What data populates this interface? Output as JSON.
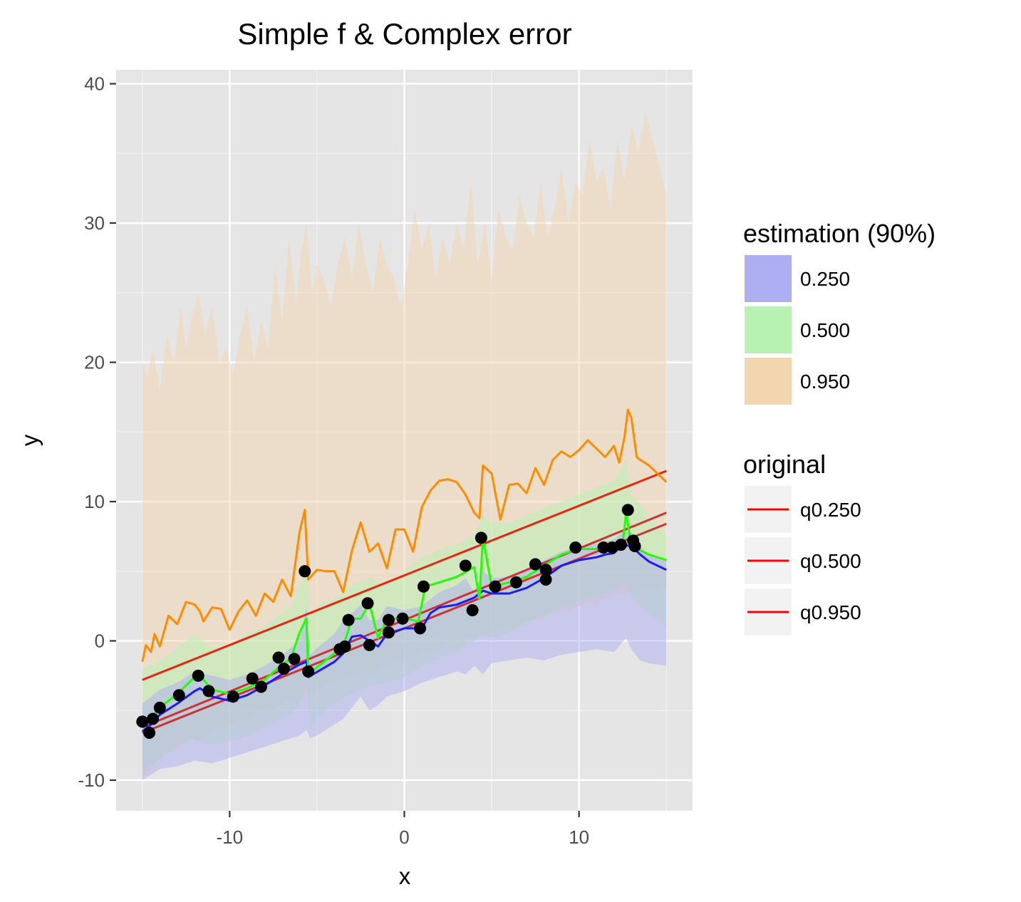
{
  "chart_data": {
    "type": "line",
    "title": "Simple f & Complex error",
    "xlabel": "x",
    "ylabel": "y",
    "xlim": [
      -16.5,
      16.5
    ],
    "ylim": [
      -12.2,
      41
    ],
    "x_ticks": [
      -10,
      0,
      10
    ],
    "x_tick_labels": [
      "-10",
      "0",
      "10"
    ],
    "y_ticks": [
      -10,
      0,
      10,
      20,
      30,
      40
    ],
    "y_tick_labels": [
      "-10",
      "0",
      "10",
      "20",
      "30",
      "40"
    ],
    "grid": true,
    "legend_position": "right",
    "colors": {
      "panel_bg": "#e5e5e5",
      "grid_major": "#ffffff",
      "band_0250": "#aeaef2",
      "band_0500": "#b8f2b2",
      "band_0950": "#f2d6b0",
      "line_0250": "#1a1aff",
      "line_0500": "#22ff00",
      "line_0950": "#ff8c00",
      "original_line": "#ff0000",
      "points": "#000000"
    },
    "legends": [
      {
        "title": "estimation (90%)",
        "type": "fill",
        "entries": [
          {
            "label": "0.250",
            "color": "#aeaef2"
          },
          {
            "label": "0.500",
            "color": "#b8f2b2"
          },
          {
            "label": "0.950",
            "color": "#f2d6b0"
          }
        ]
      },
      {
        "title": "original",
        "type": "line",
        "entries": [
          {
            "label": "q0.250",
            "color": "#ff0000"
          },
          {
            "label": "q0.500",
            "color": "#ff0000"
          },
          {
            "label": "q0.950",
            "color": "#ff0000"
          }
        ]
      }
    ],
    "original_lines": [
      {
        "name": "q0.250",
        "x": [
          -15,
          15
        ],
        "y": [
          -6.6,
          8.4
        ],
        "color": "#cc3333"
      },
      {
        "name": "q0.500",
        "x": [
          -15,
          15
        ],
        "y": [
          -6.2,
          9.2
        ],
        "color": "#cc3333"
      },
      {
        "name": "q0.950",
        "x": [
          -15,
          15
        ],
        "y": [
          -2.8,
          12.2
        ],
        "color": "#e8260f"
      }
    ],
    "estimation_lines": [
      {
        "name": "0.250",
        "color": "#1a1aff",
        "x": [
          -15,
          -14.5,
          -14,
          -13,
          -12,
          -11.7,
          -11,
          -10,
          -9,
          -8,
          -7,
          -6,
          -5.6,
          -5.5,
          -4,
          -3.5,
          -3,
          -2.5,
          -2,
          -1.5,
          -1,
          0,
          1,
          1.5,
          2,
          3,
          4,
          4.5,
          5,
          6,
          7,
          8,
          9,
          10,
          11,
          11.5,
          12,
          12.5,
          13,
          13.5,
          14,
          15
        ],
        "y": [
          -6.5,
          -6.0,
          -5.3,
          -4.5,
          -3.6,
          -3.4,
          -4.0,
          -4.3,
          -3.9,
          -3.2,
          -2.4,
          -1.7,
          -1.5,
          -2.6,
          -1.5,
          -0.9,
          0.3,
          0.4,
          0.0,
          -0.4,
          0.5,
          0.9,
          0.9,
          2.0,
          2.4,
          2.6,
          3.1,
          3.6,
          3.4,
          3.4,
          3.8,
          4.5,
          5.4,
          5.8,
          6.0,
          6.2,
          6.3,
          6.9,
          6.8,
          6.2,
          5.7,
          5.1
        ]
      },
      {
        "name": "0.500",
        "color": "#22ff00",
        "x": [
          -15,
          -14.5,
          -14,
          -13,
          -12,
          -11.7,
          -11,
          -10,
          -9,
          -8,
          -7,
          -6.5,
          -6,
          -5.6,
          -5.5,
          -4,
          -3.5,
          -3,
          -2.5,
          -2,
          -1.5,
          -1,
          0,
          0.8,
          1.2,
          2,
          3,
          4,
          4.3,
          4.5,
          5,
          6,
          7,
          8,
          9,
          10,
          11,
          12,
          12.5,
          12.7,
          13,
          14,
          15
        ],
        "y": [
          -5.8,
          -5.5,
          -4.8,
          -3.8,
          -2.6,
          -2.5,
          -3.5,
          -3.8,
          -3.4,
          -2.8,
          -1.7,
          -1.3,
          0.6,
          1.6,
          -2.4,
          -0.9,
          -0.4,
          1.6,
          1.6,
          2.7,
          0.2,
          1.6,
          1.6,
          1.4,
          3.9,
          4.2,
          4.6,
          5.3,
          3.0,
          7.4,
          3.9,
          4.2,
          4.6,
          5.4,
          6.2,
          6.6,
          6.6,
          6.8,
          7.0,
          9.2,
          6.8,
          6.2,
          5.8
        ]
      },
      {
        "name": "0.950",
        "color": "#ff8c00",
        "x": [
          -15,
          -14.8,
          -14.5,
          -14.3,
          -14,
          -13.5,
          -13,
          -12.5,
          -12,
          -11.7,
          -11.5,
          -11,
          -10.5,
          -10,
          -9.5,
          -9,
          -8.5,
          -8,
          -7.5,
          -7,
          -6.5,
          -6,
          -5.7,
          -5.5,
          -5,
          -4.5,
          -4,
          -3.5,
          -3,
          -2.5,
          -2,
          -1.5,
          -1,
          -0.5,
          0,
          0.5,
          1,
          1.5,
          2,
          2.5,
          3,
          3.5,
          4,
          4.3,
          4.5,
          5,
          5.5,
          6,
          6.5,
          7,
          7.5,
          8,
          8.5,
          9,
          9.5,
          10,
          10.5,
          11,
          11.5,
          12,
          12.3,
          12.6,
          12.8,
          13,
          13.3,
          13.5,
          14,
          14.5,
          15
        ],
        "y": [
          -1.5,
          -0.3,
          -0.8,
          0.5,
          -0.4,
          1.8,
          1.2,
          2.8,
          2.6,
          2.1,
          1.4,
          2.4,
          2.3,
          0.8,
          2.1,
          2.9,
          1.8,
          3.4,
          2.8,
          4.4,
          3.2,
          7.8,
          9.4,
          4.4,
          5.1,
          5.0,
          5.0,
          3.5,
          6.5,
          8.5,
          6.4,
          7.0,
          5.2,
          8.0,
          8.0,
          6.4,
          9.6,
          10.8,
          11.5,
          11.6,
          11.4,
          10.5,
          9.2,
          8.8,
          12.6,
          12.0,
          8.7,
          11.2,
          11.3,
          10.6,
          12.4,
          11.2,
          13.0,
          13.6,
          13.2,
          13.7,
          14.4,
          13.8,
          13.2,
          14.0,
          12.8,
          14.6,
          16.6,
          16.0,
          13.2,
          13.0,
          12.6,
          12.0,
          11.4
        ]
      }
    ],
    "bands": [
      {
        "name": "0.950",
        "color": "#f2d6b0",
        "x": [
          -15,
          -14.7,
          -14.4,
          -14,
          -13.6,
          -13.2,
          -12.8,
          -12.5,
          -12.2,
          -11.8,
          -11.4,
          -11,
          -10.6,
          -10.2,
          -9.8,
          -9.4,
          -9,
          -8.6,
          -8.2,
          -7.8,
          -7.4,
          -7,
          -6.6,
          -6.2,
          -5.9,
          -5.6,
          -5.3,
          -5,
          -4.6,
          -4.2,
          -3.8,
          -3.4,
          -3,
          -2.6,
          -2.2,
          -1.8,
          -1.4,
          -1,
          -0.6,
          -0.2,
          0.2,
          0.6,
          1,
          1.4,
          1.8,
          2.2,
          2.6,
          3,
          3.4,
          3.8,
          4.2,
          4.6,
          5,
          5.4,
          5.8,
          6.2,
          6.6,
          7,
          7.4,
          7.8,
          8.2,
          8.6,
          9,
          9.4,
          9.8,
          10.2,
          10.6,
          11,
          11.4,
          11.8,
          12.2,
          12.6,
          13,
          13.4,
          13.8,
          14.2,
          14.6,
          15
        ],
        "upper": [
          20,
          19,
          21,
          18,
          22,
          20,
          24,
          21,
          23,
          25,
          22,
          24,
          20,
          21,
          19,
          22,
          24,
          20,
          23,
          21,
          27,
          23,
          29,
          24,
          28,
          30,
          25,
          27,
          26,
          24,
          27,
          29,
          26,
          30,
          27,
          25,
          29,
          27,
          26,
          24,
          27,
          31,
          28,
          30,
          26,
          29,
          27,
          30,
          28,
          33,
          27,
          30,
          26,
          31,
          29,
          28,
          32,
          30,
          29,
          33,
          29,
          31,
          34,
          30,
          33,
          32,
          36,
          33,
          34,
          31,
          36,
          33,
          37,
          35,
          38,
          36,
          34,
          32
        ],
        "lower": [
          -10,
          -9.5,
          -9,
          -8.5,
          -8,
          -8,
          -7.5,
          -7.3,
          -7,
          -7.2,
          -6.8,
          -6.5,
          -6.2,
          -6.4,
          -6,
          -5.6,
          -5.8,
          -5.4,
          -5,
          -5.2,
          -4.9,
          -4.6,
          -4.3,
          -4.5,
          -4.2,
          -3.9,
          -3.7,
          -3.5,
          -3.2,
          -3,
          -2.8,
          -3,
          -2.6,
          -2.4,
          -2.2,
          -2.4,
          -2,
          -1.8,
          -1.6,
          -1.4,
          -1.2,
          -1,
          -0.8,
          -1,
          -0.6,
          -0.4,
          -0.2,
          0,
          -0.2,
          0.2,
          0.4,
          0.3,
          0.6,
          0.8,
          1,
          0.8,
          1.2,
          1.4,
          1.6,
          1.4,
          1.8,
          2,
          2.2,
          2,
          2.4,
          2.6,
          2.8,
          2.6,
          3,
          3.2,
          3.4,
          3.2,
          3.6,
          3.4,
          3.8,
          3.6,
          3.8,
          3.6
        ]
      },
      {
        "name": "0.500",
        "color": "#b8f2b2",
        "x": [
          -15,
          -14,
          -13,
          -12,
          -11,
          -10,
          -9,
          -8,
          -7,
          -6.5,
          -6,
          -5.6,
          -5.4,
          -5,
          -4,
          -3,
          -2,
          -1,
          0,
          1,
          2,
          3,
          4,
          4.5,
          5,
          6,
          7,
          8,
          9,
          10,
          11,
          12,
          12.7,
          13,
          14,
          15
        ],
        "upper": [
          -2,
          -1.5,
          -0.5,
          0.5,
          -0.5,
          -0.3,
          0.5,
          1,
          2,
          2.5,
          4,
          5.5,
          1.5,
          2.5,
          3,
          4,
          4.5,
          4,
          5,
          6,
          6.5,
          7,
          7.5,
          9,
          8.5,
          8.5,
          9,
          9.5,
          10,
          10.5,
          11,
          11.5,
          13,
          10.5,
          9,
          7.5
        ],
        "lower": [
          -9.5,
          -8.5,
          -7.5,
          -7,
          -7.5,
          -7.2,
          -6.8,
          -6.2,
          -5.5,
          -5.2,
          -4.5,
          -3,
          -6.5,
          -5.5,
          -4.5,
          -3.8,
          -3.2,
          -3,
          -2.6,
          -1.8,
          -1.2,
          -0.8,
          0,
          0.5,
          0.2,
          0.6,
          1.2,
          1.8,
          2.4,
          2.8,
          3.2,
          3.6,
          4.2,
          3,
          2,
          1
        ]
      },
      {
        "name": "0.250",
        "color": "#aeaef2",
        "x": [
          -15,
          -14.5,
          -14,
          -13,
          -12,
          -11,
          -10,
          -9,
          -8,
          -7,
          -6,
          -5.6,
          -5.4,
          -5,
          -4,
          -3.5,
          -3,
          -2.5,
          -2,
          -1.5,
          -1,
          0,
          1,
          2,
          3,
          3.5,
          4,
          4.5,
          5,
          6,
          7,
          8,
          9,
          10,
          11,
          12,
          12.7,
          13,
          13.5,
          14,
          15
        ],
        "upper": [
          -4.5,
          -4,
          -3.5,
          -3,
          -2.2,
          -2.5,
          -2.8,
          -2.4,
          -1.8,
          -1,
          0,
          2.5,
          -1,
          -0.5,
          0.5,
          1.5,
          2,
          2.6,
          1.5,
          1.5,
          2.5,
          2.2,
          2.5,
          3.5,
          4,
          4.5,
          3.5,
          5,
          4.5,
          4.6,
          5.2,
          5.8,
          6.4,
          6.8,
          7,
          7.3,
          8,
          7.2,
          6.8,
          6.2,
          5.8
        ],
        "lower": [
          -10,
          -9.6,
          -9.2,
          -9,
          -8.6,
          -8.8,
          -8.4,
          -8,
          -7.6,
          -7.2,
          -6.8,
          -6.4,
          -7,
          -6.8,
          -6,
          -5.6,
          -4.8,
          -4,
          -5,
          -4.6,
          -4,
          -3.6,
          -3,
          -2.6,
          -2.2,
          -2.4,
          -1.8,
          -2.4,
          -1.6,
          -1.4,
          -1.2,
          -1.4,
          -1,
          -0.8,
          -0.6,
          -0.8,
          0.2,
          -0.6,
          -1.4,
          -1.6,
          -1.8
        ]
      }
    ],
    "points": {
      "x": [
        -15,
        -14.6,
        -14.4,
        -14,
        -12.9,
        -11.8,
        -11.2,
        -9.8,
        -8.7,
        -8.2,
        -7.2,
        -6.9,
        -6.3,
        -5.7,
        -5.5,
        -3.7,
        -3.4,
        -3.2,
        -2.1,
        -2.0,
        -0.9,
        -0.9,
        -0.1,
        0.9,
        1.1,
        3.5,
        3.9,
        4.4,
        5.2,
        6.4,
        7.5,
        8.1,
        8.1,
        9.8,
        11.4,
        11.9,
        12.4,
        12.8,
        13.1,
        13.2
      ],
      "y": [
        -5.8,
        -6.6,
        -5.6,
        -4.8,
        -3.9,
        -2.5,
        -3.6,
        -4.0,
        -2.7,
        -3.3,
        -1.2,
        -2.0,
        -1.3,
        5.0,
        -2.2,
        -0.6,
        -0.4,
        1.5,
        2.7,
        -0.3,
        1.5,
        0.6,
        1.6,
        0.9,
        3.9,
        5.4,
        2.2,
        7.4,
        3.9,
        4.2,
        5.5,
        4.4,
        5.1,
        6.7,
        6.7,
        6.7,
        6.9,
        9.4,
        7.2,
        6.8
      ]
    }
  }
}
